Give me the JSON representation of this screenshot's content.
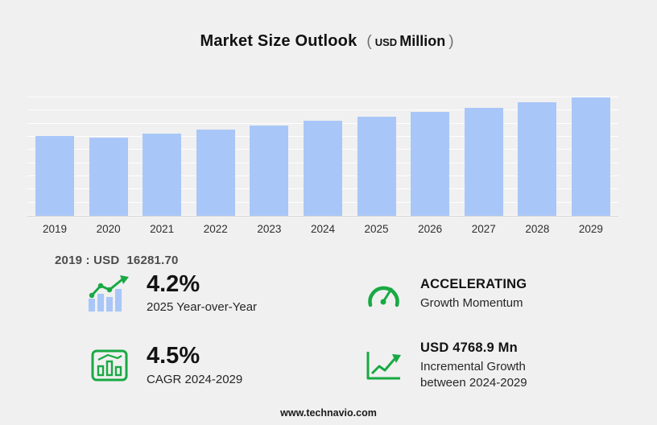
{
  "title": {
    "main": "Market Size Outlook",
    "open": "(",
    "currency": "USD",
    "unit": "Million",
    "close": ")"
  },
  "chart_data": {
    "type": "bar",
    "title": "Market Size Outlook (USD Million)",
    "categories": [
      "2019",
      "2020",
      "2021",
      "2022",
      "2023",
      "2024",
      "2025",
      "2026",
      "2027",
      "2028",
      "2029"
    ],
    "values": [
      16281.7,
      15900,
      16700,
      17550,
      18430,
      19371.3,
      20184.9,
      21107,
      22072,
      23081,
      24140.2
    ],
    "unit": "USD Million",
    "ylim": [
      0,
      25000
    ],
    "grid": true,
    "legend": false,
    "bar_color": "#a9c6f8",
    "xlabel": "",
    "ylabel": ""
  },
  "annotation": {
    "label": "2019 : USD",
    "value": "16281.70"
  },
  "stats": [
    {
      "icon": "yoy-bars-icon",
      "value": "4.2%",
      "label": "2025 Year-over-Year"
    },
    {
      "icon": "speedometer-icon",
      "value": "ACCELERATING",
      "label": "Growth Momentum"
    },
    {
      "icon": "cagr-chart-icon",
      "value": "4.5%",
      "label": "CAGR 2024-2029"
    },
    {
      "icon": "growth-arrow-icon",
      "value": "USD 4768.9 Mn",
      "label": "Incremental Growth between 2024-2029"
    }
  ],
  "footer": {
    "url": "www.technavio.com"
  },
  "colors": {
    "background": "#f0f0f0",
    "bar_blue": "#a9c6f8",
    "accent_green": "#18a943"
  }
}
